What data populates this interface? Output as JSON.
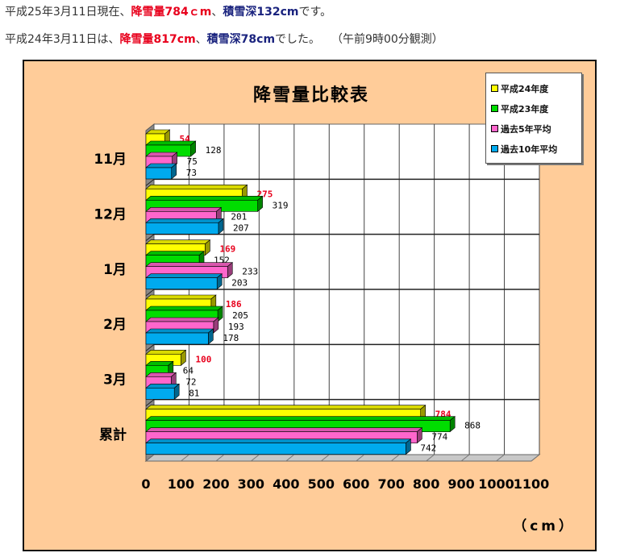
{
  "header": {
    "line1": {
      "prefix": "平成25年3月11日現在、",
      "snowfall": "降雪量784ｃm",
      "sep": "、",
      "depth": "積雪深132cm",
      "suffix": "です。"
    },
    "line2": {
      "prefix": "平成24年3月11日は、",
      "snowfall": "降雪量817cm",
      "sep": "、",
      "depth": "積雪深78cm",
      "suffix": "でした。　　（午前9時00分観測）"
    }
  },
  "colors": {
    "series": [
      "#ffff00",
      "#00dd00",
      "#ff66cc",
      "#00aaee"
    ],
    "background": "#ffcc99",
    "highlight_label": "#e8001c"
  },
  "chart_data": {
    "type": "bar",
    "orientation": "horizontal",
    "title": "降雪量比較表",
    "unit_label": "（cm）",
    "categories": [
      "11月",
      "12月",
      "1月",
      "2月",
      "3月",
      "累計"
    ],
    "series": [
      {
        "name": "平成24年度",
        "values": [
          54,
          275,
          169,
          186,
          100,
          784
        ]
      },
      {
        "name": "平成23年度",
        "values": [
          128,
          319,
          152,
          205,
          64,
          868
        ]
      },
      {
        "name": "過去5年平均",
        "values": [
          75,
          201,
          233,
          193,
          72,
          774
        ]
      },
      {
        "name": "過去10年平均",
        "values": [
          73,
          207,
          203,
          178,
          81,
          742
        ]
      }
    ],
    "data_labels": [
      [
        "54",
        "275",
        "169",
        "186",
        "100",
        "784"
      ],
      [
        "128",
        "319",
        "152",
        "205",
        "64",
        "868"
      ],
      [
        "75",
        "201",
        "233",
        "193",
        "72",
        "774"
      ],
      [
        "73",
        "207",
        "203",
        "178",
        "81",
        "742"
      ]
    ],
    "xlim": [
      0,
      1100
    ],
    "xticks": [
      "0",
      "100",
      "200",
      "300",
      "400",
      "500",
      "600",
      "700",
      "800",
      "900",
      "1000",
      "1100"
    ],
    "grid": true,
    "legend_position": "top-right"
  }
}
